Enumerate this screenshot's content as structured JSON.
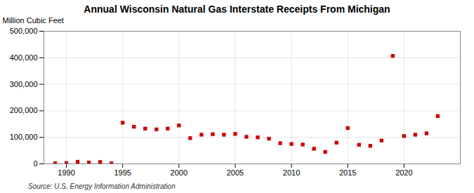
{
  "chart_data": {
    "type": "scatter",
    "title": "Annual Wisconsin Natural Gas Interstate Receipts From Michigan",
    "ylabel": "Million Cubic Feet",
    "source": "Source: U.S. Energy Information Administration",
    "x": [
      1989,
      1990,
      1991,
      1992,
      1993,
      1994,
      1995,
      1996,
      1997,
      1998,
      1999,
      2000,
      2001,
      2002,
      2003,
      2004,
      2005,
      2006,
      2007,
      2008,
      2009,
      2010,
      2011,
      2012,
      2013,
      2014,
      2015,
      2016,
      2017,
      2018,
      2019,
      2020,
      2021,
      2022,
      2023
    ],
    "values": [
      2000,
      3000,
      8000,
      5000,
      7000,
      2000,
      155000,
      140000,
      133000,
      130000,
      133000,
      145000,
      97000,
      110000,
      112000,
      110000,
      113000,
      102000,
      100000,
      95000,
      78000,
      75000,
      73000,
      57000,
      45000,
      80000,
      135000,
      72000,
      68000,
      88000,
      407000,
      105000,
      110000,
      115000,
      180000
    ],
    "color": "#cc0000",
    "marker": "square",
    "xlim": [
      1988,
      2025
    ],
    "xticks": [
      1990,
      1995,
      2000,
      2005,
      2010,
      2015,
      2020
    ],
    "ylim": [
      0,
      500000
    ],
    "yticks": [
      0,
      {
        "value": 100000,
        "label": "100,000"
      },
      {
        "value": 200000,
        "label": "200,000"
      },
      {
        "value": 300000,
        "label": "300,000"
      },
      {
        "value": 400000,
        "label": "400,000"
      },
      {
        "value": 500000,
        "label": "500,000"
      }
    ],
    "grid": true
  }
}
